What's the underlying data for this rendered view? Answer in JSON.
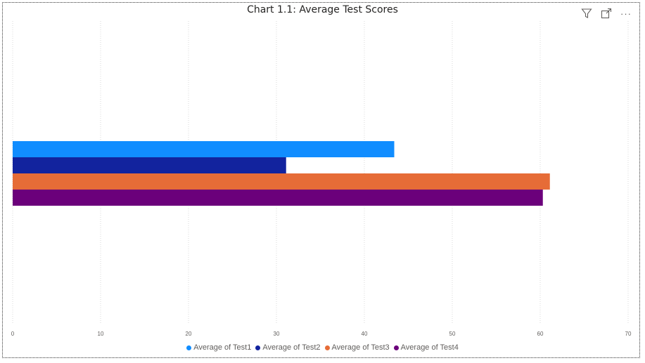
{
  "toolbar": {
    "icons": [
      "filter-icon",
      "focus-mode-icon",
      "more-options-icon"
    ],
    "more_label": "···"
  },
  "colors": {
    "test1": "#118DFF",
    "test2": "#12239E",
    "test3": "#E66C37",
    "test4": "#6B007B",
    "gridline": "#d8d8d8",
    "tick": "#605e5c"
  },
  "chart_data": {
    "type": "bar",
    "orientation": "horizontal",
    "title": "Chart 1.1: Average Test Scores",
    "xlabel": "",
    "ylabel": "",
    "xlim": [
      0,
      70
    ],
    "x_ticks": [
      "0",
      "10",
      "20",
      "30",
      "40",
      "50",
      "60",
      "70"
    ],
    "grid": true,
    "legend_position": "bottom",
    "categories": [
      ""
    ],
    "series": [
      {
        "name": "Average of Test1",
        "values": [
          43.4
        ]
      },
      {
        "name": "Average of Test2",
        "values": [
          31.1
        ]
      },
      {
        "name": "Average of Test3",
        "values": [
          61.1
        ]
      },
      {
        "name": "Average of Test4",
        "values": [
          60.3
        ]
      }
    ]
  }
}
